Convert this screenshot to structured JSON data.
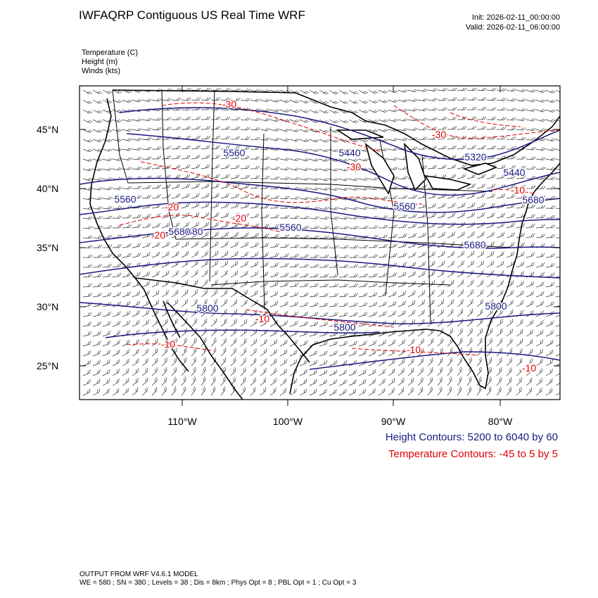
{
  "header": {
    "title": "IWFAQRP Contiguous US Real Time WRF",
    "init": "Init: 2026-02-11_00:00:00",
    "valid": "Valid: 2026-02-11_06:00:00"
  },
  "variables": [
    "Temperature   (C)",
    "Height   (m)",
    "Winds   (kts)"
  ],
  "map": {
    "lat_ticks": [
      "45°N",
      "40°N",
      "35°N",
      "30°N",
      "25°N"
    ],
    "lon_ticks": [
      "110°W",
      "100°W",
      "90°W",
      "80°W"
    ],
    "height_labels": [
      "5560",
      "5440",
      "5320",
      "5440",
      "5560",
      "5560",
      "5680",
      "5680",
      "5560",
      "5680",
      "5800",
      "5800",
      "5800",
      "5680"
    ],
    "temp_labels": [
      "-30",
      "-30",
      "-30",
      "-20",
      "-20",
      "-20",
      "-10",
      "-10",
      "-10",
      "-10",
      "-10"
    ],
    "colors": {
      "height": "#1a1a80",
      "temperature": "#e00000",
      "boundaries": "#000000",
      "barbs": "#222222"
    }
  },
  "legend": {
    "height": "Height Contours: 5200 to 6040 by 60",
    "temperature": "Temperature Contours: -45 to 5 by 5"
  },
  "footer": {
    "line1": "OUTPUT FROM WRF V4.6.1 MODEL",
    "line2": "WE = 580 ; SN = 380 ; Levels = 38 ; Dis = 8km ; Phys Opt = 8 ; PBL Opt = 1 ; Cu Opt = 3"
  }
}
